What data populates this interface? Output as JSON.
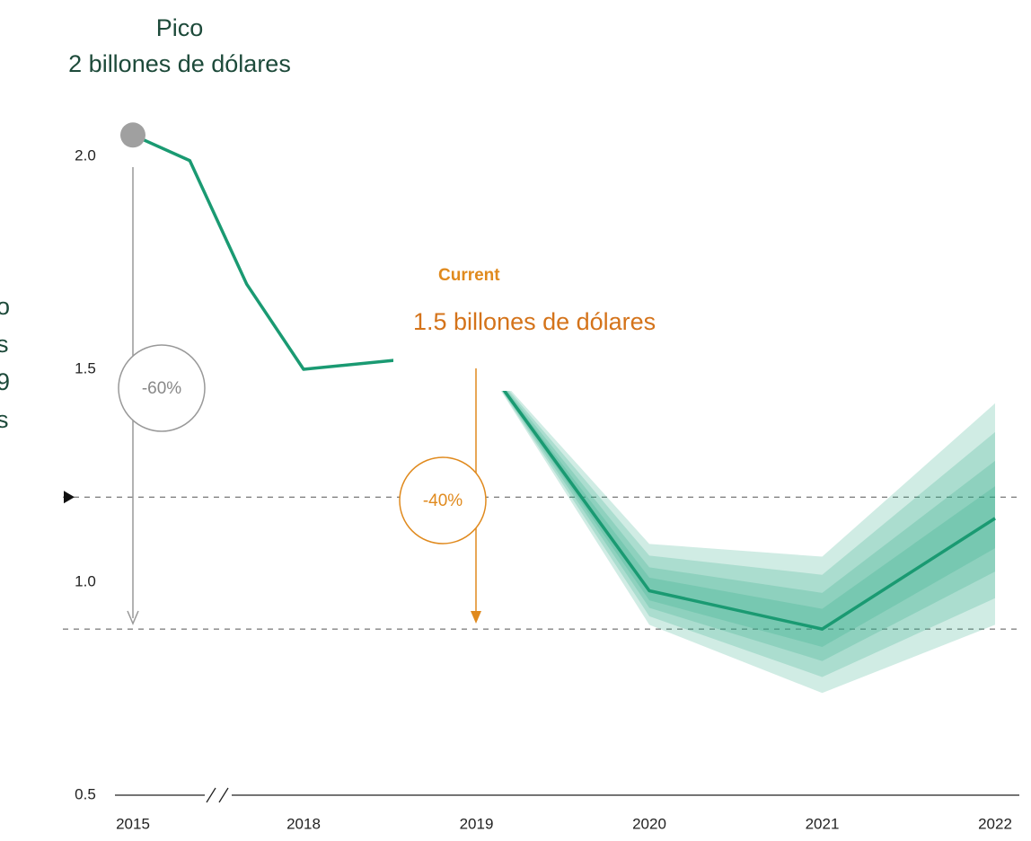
{
  "chart_data": {
    "type": "line",
    "title": "Pico",
    "subtitle": "2 billones de dólares",
    "left_note": [
      "o",
      "s",
      "9",
      "s"
    ],
    "x": [
      2015,
      2016,
      2017,
      2018,
      2018.5,
      2019,
      2020,
      2021,
      2022
    ],
    "series": [
      {
        "name": null,
        "color": "#1a9a72",
        "values": [
          2.05,
          1.99,
          1.7,
          1.5,
          1.52,
          1.54,
          0.98,
          0.89,
          1.15
        ]
      }
    ],
    "band": {
      "color": "#2aa882",
      "x": [
        2019,
        2020,
        2021,
        2022
      ],
      "upper": [
        1.54,
        1.09,
        1.06,
        1.42
      ],
      "lower": [
        1.54,
        0.9,
        0.74,
        0.9
      ]
    },
    "reference_lines": [
      1.2,
      0.89
    ],
    "xlim": [
      2015,
      2022
    ],
    "xticks": [
      2015,
      2018,
      2019,
      2020,
      2021,
      2022
    ],
    "ylim": [
      0.5,
      2.1
    ],
    "yticks": [
      0.5,
      {
        "value": 1,
        "label": "1.0"
      },
      1.5,
      {
        "value": 2,
        "label": "2.0"
      }
    ],
    "annotations": {
      "current_label": "Current",
      "current_value": "1.5 billones de dólares",
      "drop_peak": "-60%",
      "drop_current": "-40%"
    }
  }
}
